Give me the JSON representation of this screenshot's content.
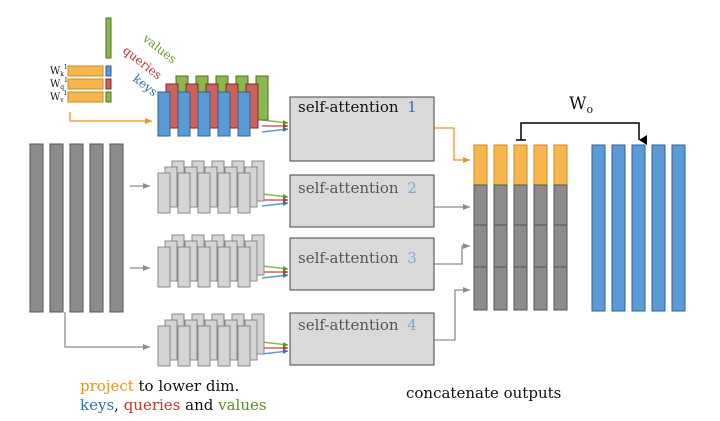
{
  "colors": {
    "input": "#8c8c8c",
    "input_border": "#555555",
    "key": "#5b9bd5",
    "key_border": "#2f5f8f",
    "query": "#d0605c",
    "query_border": "#7a2b29",
    "value": "#8ab84d",
    "value_border": "#4f6f25",
    "proj": "#f7b64e",
    "proj_border": "#c88a22",
    "ghost": "#d4d4d4",
    "ghost_border": "#888888",
    "box": "#d9d9d9",
    "box_border": "#444444",
    "arrow_orange": "#e8941a",
    "arrow_gray": "#8c8c8c",
    "head_num_1": "#3a6fb0",
    "head_num_other": "#7fa8d6"
  },
  "weights": {
    "labels": [
      "W",
      "W",
      "W"
    ],
    "sub": [
      "k",
      "q",
      "v"
    ],
    "sup": "1"
  },
  "kqv_labels": {
    "values": "values",
    "queries": "queries",
    "keys": "keys"
  },
  "heads": [
    {
      "label": "self-attention",
      "num": "1"
    },
    {
      "label": "self-attention",
      "num": "2"
    },
    {
      "label": "self-attention",
      "num": "3"
    },
    {
      "label": "self-attention",
      "num": "4"
    }
  ],
  "wo": {
    "label": "W",
    "sub": "o"
  },
  "captions": {
    "line1": {
      "project": "project",
      "rest": " to lower dim."
    },
    "line2": {
      "keys": "keys",
      "sep1": ", ",
      "queries": "queries",
      "sep2": " and ",
      "values": "values"
    },
    "concat": "concatenate outputs"
  }
}
